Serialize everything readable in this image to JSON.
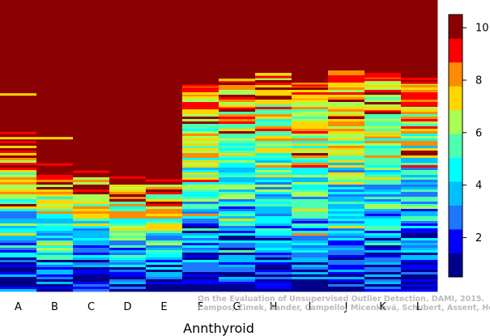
{
  "chart_data": {
    "type": "heatmap",
    "xlabel": "Annthyroid",
    "categories": [
      "A",
      "B",
      "C",
      "D",
      "E",
      "F",
      "G",
      "H",
      "I",
      "J",
      "K",
      "L"
    ],
    "colorbar": {
      "vmin": 0.5,
      "vmax": 10.5,
      "ticks": [
        2,
        4,
        6,
        8,
        10
      ],
      "colors": [
        "#00008b",
        "#0000ff",
        "#1e78ff",
        "#00bfff",
        "#00ffff",
        "#4dffb0",
        "#aaff55",
        "#ffd700",
        "#ff8c00",
        "#ff0000",
        "#8b0000"
      ]
    },
    "columns": [
      {
        "name": "A",
        "dark_red_until": 0.47,
        "red_band": [
          0.452,
          0.465
        ],
        "yellow_marks": [
          0.32,
          0.47
        ]
      },
      {
        "name": "B",
        "dark_red_until": 0.58,
        "red_band": [
          0.56,
          0.575
        ],
        "yellow_marks": [
          0.47
        ]
      },
      {
        "name": "C",
        "dark_red_until": 0.6,
        "red_band": [
          0.585,
          0.6
        ],
        "yellow_marks": []
      },
      {
        "name": "D",
        "dark_red_until": 0.62,
        "red_band": [
          0.605,
          0.62
        ],
        "yellow_marks": []
      },
      {
        "name": "E",
        "dark_red_until": 0.63,
        "red_band": [
          0.615,
          0.63
        ],
        "yellow_marks": []
      },
      {
        "name": "F",
        "dark_red_until": 0.29,
        "red_band": [
          0.29,
          0.3
        ],
        "yellow_marks": [
          0.33
        ]
      },
      {
        "name": "G",
        "dark_red_until": 0.27,
        "red_band": [
          0.275,
          0.29
        ],
        "yellow_marks": [
          0.27,
          0.36
        ]
      },
      {
        "name": "H",
        "dark_red_until": 0.25,
        "red_band": [
          0.26,
          0.27
        ],
        "yellow_marks": [
          0.32,
          0.35
        ]
      },
      {
        "name": "I",
        "dark_red_until": 0.28,
        "red_band": [
          0.29,
          0.3
        ],
        "yellow_marks": [
          0.33
        ]
      },
      {
        "name": "J",
        "dark_red_until": 0.24,
        "red_band": [
          0.26,
          0.27
        ],
        "yellow_marks": [
          0.29,
          0.39
        ]
      },
      {
        "name": "K",
        "dark_red_until": 0.25,
        "red_band": [
          0.27,
          0.28
        ],
        "yellow_marks": [
          0.37,
          0.46
        ]
      },
      {
        "name": "L",
        "dark_red_until": 0.26,
        "red_band": [
          0.28,
          0.29
        ],
        "yellow_marks": [
          0.3
        ]
      }
    ]
  },
  "credit": {
    "line1": "On the Evaluation of Unsupervised Outlier Detection. DAMI, 2015.",
    "line2": "Campos, Zimek, Sander, Campello, Micenková, Schubert, Assent, Houle"
  }
}
